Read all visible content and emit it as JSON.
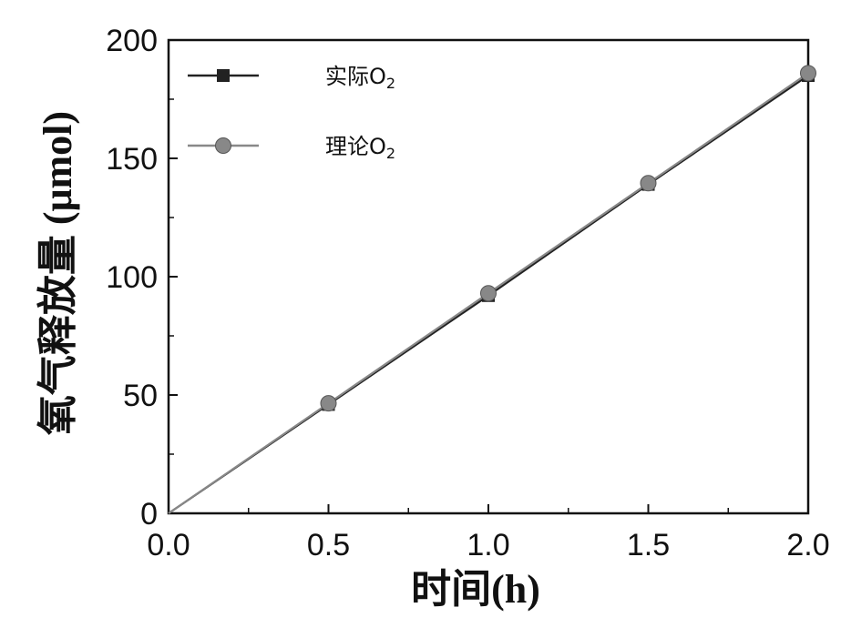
{
  "chart_data": {
    "type": "line",
    "xlabel": "时间(h)",
    "ylabel": "氧气释放量 (μmol)",
    "xlim": [
      0.0,
      2.0
    ],
    "ylim": [
      0,
      200
    ],
    "xticks": [
      "0.0",
      "0.5",
      "1.0",
      "1.5",
      "2.0"
    ],
    "yticks": [
      "0",
      "50",
      "100",
      "150",
      "200"
    ],
    "legend_position": "top-left",
    "grid": false,
    "series": [
      {
        "name": "实际O2",
        "legend_main": "实际O",
        "legend_sub": "2",
        "marker": "square",
        "color": "#222222",
        "x": [
          0.0,
          0.5,
          1.0,
          1.5,
          2.0
        ],
        "y": [
          0,
          46,
          92,
          139,
          185
        ]
      },
      {
        "name": "理论O2",
        "legend_main": "理论O",
        "legend_sub": "2",
        "marker": "circle",
        "color": "#888888",
        "x": [
          0.0,
          0.5,
          1.0,
          1.5,
          2.0
        ],
        "y": [
          0,
          46.5,
          93,
          139.5,
          186
        ]
      }
    ]
  }
}
